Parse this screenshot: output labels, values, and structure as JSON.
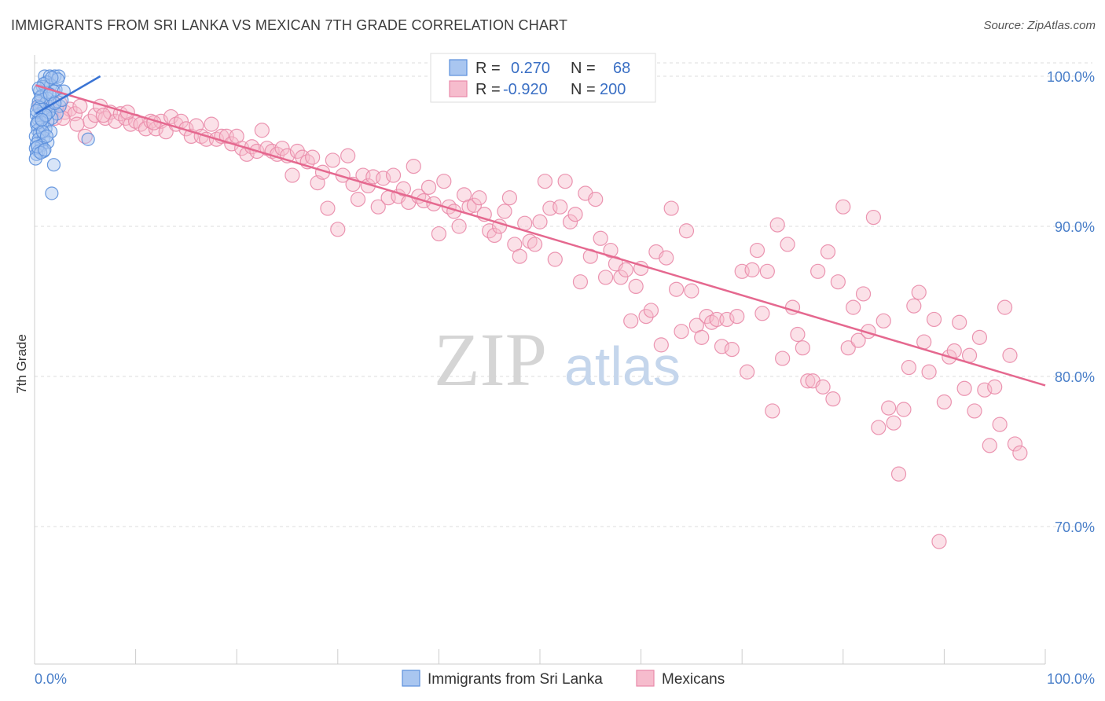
{
  "title": "IMMIGRANTS FROM SRI LANKA VS MEXICAN 7TH GRADE CORRELATION CHART",
  "source": "Source: ZipAtlas.com",
  "watermark": {
    "zip": "ZIP",
    "atlas": "atlas"
  },
  "colors": {
    "blue_fill": "#a9c6f0",
    "blue_stroke": "#5b8fdc",
    "blue_line": "#3a74d4",
    "pink_fill": "#f6bccd",
    "pink_stroke": "#e98aa9",
    "pink_line": "#e5688f",
    "grid": "#dddddd",
    "tick_text": "#4a7fc9"
  },
  "legend": {
    "r_label": "R =",
    "n_label": "N =",
    "entries": [
      {
        "r": "0.270",
        "n": "68"
      },
      {
        "r": "-0.920",
        "n": "200"
      }
    ]
  },
  "chart_data": {
    "type": "scatter",
    "xlabel": "",
    "ylabel": "7th Grade",
    "xlim": [
      0,
      100
    ],
    "ylim": [
      60,
      100
    ],
    "x_tick_labels": [
      "0.0%",
      "100.0%"
    ],
    "y_ticks": [
      {
        "value": 100,
        "label": "100.0%"
      },
      {
        "value": 90,
        "label": "90.0%"
      },
      {
        "value": 80,
        "label": "80.0%"
      },
      {
        "value": 70,
        "label": "70.0%"
      }
    ],
    "grid": true,
    "legend_placement": "top-center",
    "series": [
      {
        "name": "Immigrants from Sri Lanka",
        "trend": {
          "x": [
            0.1,
            6.5
          ],
          "y": [
            97.5,
            100.0
          ]
        },
        "points": [
          [
            1.0,
            100.0
          ],
          [
            1.5,
            100.0
          ],
          [
            2.0,
            100.0
          ],
          [
            2.4,
            100.0
          ],
          [
            1.2,
            99.6
          ],
          [
            0.8,
            99.3
          ],
          [
            1.6,
            99.4
          ],
          [
            2.1,
            99.1
          ],
          [
            0.5,
            99.0
          ],
          [
            1.9,
            99.0
          ],
          [
            2.9,
            99.0
          ],
          [
            0.7,
            98.7
          ],
          [
            1.3,
            98.5
          ],
          [
            0.4,
            98.3
          ],
          [
            1.1,
            98.2
          ],
          [
            1.8,
            98.1
          ],
          [
            2.5,
            98.0
          ],
          [
            0.3,
            98.0
          ],
          [
            0.9,
            97.8
          ],
          [
            1.5,
            97.7
          ],
          [
            2.2,
            97.5
          ],
          [
            0.6,
            97.5
          ],
          [
            0.2,
            97.4
          ],
          [
            1.0,
            97.3
          ],
          [
            1.7,
            97.2
          ],
          [
            0.4,
            97.1
          ],
          [
            1.3,
            97.0
          ],
          [
            0.8,
            96.9
          ],
          [
            0.2,
            96.8
          ],
          [
            0.6,
            96.6
          ],
          [
            1.1,
            96.5
          ],
          [
            0.3,
            96.4
          ],
          [
            1.6,
            96.3
          ],
          [
            0.5,
            96.2
          ],
          [
            0.1,
            96.0
          ],
          [
            0.9,
            95.9
          ],
          [
            0.4,
            95.8
          ],
          [
            1.3,
            95.6
          ],
          [
            0.2,
            95.5
          ],
          [
            0.7,
            95.4
          ],
          [
            0.1,
            95.2
          ],
          [
            0.4,
            95.0
          ],
          [
            0.9,
            95.0
          ],
          [
            0.2,
            94.8
          ],
          [
            5.3,
            95.8
          ],
          [
            1.9,
            94.1
          ],
          [
            1.7,
            92.2
          ],
          [
            0.1,
            94.5
          ],
          [
            1.2,
            98.9
          ],
          [
            2.7,
            98.4
          ],
          [
            0.5,
            97.9
          ],
          [
            1.4,
            97.6
          ],
          [
            0.9,
            99.5
          ],
          [
            2.3,
            99.8
          ],
          [
            1.7,
            99.9
          ],
          [
            0.3,
            96.9
          ],
          [
            0.6,
            98.6
          ],
          [
            1.1,
            97.4
          ],
          [
            0.2,
            97.7
          ],
          [
            0.8,
            96.3
          ],
          [
            1.5,
            98.8
          ],
          [
            0.4,
            99.2
          ],
          [
            2.0,
            98.2
          ],
          [
            0.7,
            97.1
          ],
          [
            1.2,
            96.0
          ],
          [
            0.3,
            95.3
          ],
          [
            0.6,
            94.9
          ],
          [
            1.0,
            95.1
          ]
        ]
      },
      {
        "name": "Mexicans",
        "trend": {
          "x": [
            0.1,
            100.0
          ],
          "y": [
            99.4,
            79.4
          ]
        },
        "points": [
          [
            0.5,
            98.0
          ],
          [
            1.0,
            97.5
          ],
          [
            1.5,
            97.8
          ],
          [
            2.0,
            97.2
          ],
          [
            2.5,
            98.2
          ],
          [
            3.0,
            97.6
          ],
          [
            3.5,
            97.8
          ],
          [
            4.0,
            97.5
          ],
          [
            4.5,
            98.0
          ],
          [
            5.0,
            96.0
          ],
          [
            5.5,
            97.0
          ],
          [
            6.0,
            97.4
          ],
          [
            6.5,
            98.0
          ],
          [
            7.0,
            97.2
          ],
          [
            7.5,
            97.6
          ],
          [
            8.0,
            97.0
          ],
          [
            8.5,
            97.5
          ],
          [
            9.0,
            97.2
          ],
          [
            9.5,
            96.8
          ],
          [
            10.0,
            97.0
          ],
          [
            10.5,
            96.8
          ],
          [
            11.0,
            96.5
          ],
          [
            11.5,
            97.0
          ],
          [
            12.0,
            96.5
          ],
          [
            12.5,
            97.0
          ],
          [
            13.0,
            96.3
          ],
          [
            13.5,
            97.3
          ],
          [
            14.0,
            96.8
          ],
          [
            14.5,
            97.0
          ],
          [
            15.0,
            96.5
          ],
          [
            15.5,
            96.0
          ],
          [
            16.0,
            96.7
          ],
          [
            16.5,
            96.0
          ],
          [
            17.0,
            95.8
          ],
          [
            17.5,
            96.8
          ],
          [
            18.0,
            95.8
          ],
          [
            18.5,
            96.0
          ],
          [
            19.0,
            96.0
          ],
          [
            19.5,
            95.5
          ],
          [
            20.0,
            96.0
          ],
          [
            20.5,
            95.2
          ],
          [
            21.0,
            94.8
          ],
          [
            21.5,
            95.3
          ],
          [
            22.0,
            95.0
          ],
          [
            22.5,
            96.4
          ],
          [
            23.0,
            95.2
          ],
          [
            23.5,
            95.0
          ],
          [
            24.0,
            94.8
          ],
          [
            24.5,
            95.2
          ],
          [
            25.0,
            94.7
          ],
          [
            25.5,
            93.4
          ],
          [
            26.0,
            95.0
          ],
          [
            26.5,
            94.6
          ],
          [
            27.0,
            94.3
          ],
          [
            27.5,
            94.6
          ],
          [
            28.0,
            92.9
          ],
          [
            28.5,
            93.6
          ],
          [
            29.0,
            91.2
          ],
          [
            29.5,
            94.4
          ],
          [
            30.0,
            89.8
          ],
          [
            30.5,
            93.4
          ],
          [
            31.0,
            94.7
          ],
          [
            31.5,
            92.8
          ],
          [
            32.0,
            91.8
          ],
          [
            32.5,
            93.4
          ],
          [
            33.0,
            92.7
          ],
          [
            33.5,
            93.3
          ],
          [
            34.0,
            91.3
          ],
          [
            34.5,
            93.2
          ],
          [
            35.0,
            91.9
          ],
          [
            35.5,
            93.4
          ],
          [
            36.0,
            92.0
          ],
          [
            36.5,
            92.5
          ],
          [
            37.0,
            91.6
          ],
          [
            37.5,
            94.0
          ],
          [
            38.0,
            92.0
          ],
          [
            38.5,
            91.7
          ],
          [
            39.0,
            92.6
          ],
          [
            39.5,
            91.5
          ],
          [
            40.0,
            89.5
          ],
          [
            40.5,
            93.0
          ],
          [
            41.0,
            91.3
          ],
          [
            41.5,
            91.0
          ],
          [
            42.0,
            90.0
          ],
          [
            42.5,
            92.1
          ],
          [
            43.0,
            91.3
          ],
          [
            43.5,
            91.4
          ],
          [
            44.0,
            91.9
          ],
          [
            44.5,
            90.8
          ],
          [
            45.0,
            89.7
          ],
          [
            45.5,
            89.4
          ],
          [
            46.0,
            90.0
          ],
          [
            46.5,
            91.0
          ],
          [
            47.0,
            91.9
          ],
          [
            47.5,
            88.8
          ],
          [
            48.0,
            88.0
          ],
          [
            48.5,
            90.2
          ],
          [
            49.0,
            89.0
          ],
          [
            49.5,
            88.8
          ],
          [
            50.0,
            90.3
          ],
          [
            50.5,
            93.0
          ],
          [
            51.0,
            91.2
          ],
          [
            51.5,
            87.8
          ],
          [
            52.0,
            91.3
          ],
          [
            52.5,
            93.0
          ],
          [
            53.0,
            90.3
          ],
          [
            53.5,
            90.8
          ],
          [
            54.0,
            86.3
          ],
          [
            54.5,
            92.2
          ],
          [
            55.0,
            88.0
          ],
          [
            55.5,
            91.8
          ],
          [
            56.0,
            89.2
          ],
          [
            56.5,
            86.6
          ],
          [
            57.0,
            88.4
          ],
          [
            57.5,
            87.5
          ],
          [
            58.0,
            86.6
          ],
          [
            58.5,
            87.1
          ],
          [
            59.0,
            83.7
          ],
          [
            59.5,
            86.0
          ],
          [
            60.0,
            87.2
          ],
          [
            60.5,
            84.0
          ],
          [
            61.0,
            84.4
          ],
          [
            61.5,
            88.3
          ],
          [
            62.0,
            82.1
          ],
          [
            62.5,
            87.9
          ],
          [
            63.0,
            91.2
          ],
          [
            63.5,
            85.8
          ],
          [
            64.0,
            83.0
          ],
          [
            64.5,
            89.7
          ],
          [
            65.0,
            85.7
          ],
          [
            65.5,
            83.4
          ],
          [
            66.0,
            82.6
          ],
          [
            66.5,
            84.0
          ],
          [
            67.0,
            83.6
          ],
          [
            67.5,
            83.8
          ],
          [
            68.0,
            82.0
          ],
          [
            68.5,
            83.8
          ],
          [
            69.0,
            81.8
          ],
          [
            69.5,
            84.0
          ],
          [
            70.0,
            87.0
          ],
          [
            70.5,
            80.3
          ],
          [
            71.0,
            87.1
          ],
          [
            71.5,
            88.4
          ],
          [
            72.0,
            84.2
          ],
          [
            72.5,
            87.0
          ],
          [
            73.0,
            77.7
          ],
          [
            73.5,
            90.1
          ],
          [
            74.0,
            81.2
          ],
          [
            74.5,
            88.8
          ],
          [
            75.0,
            84.6
          ],
          [
            75.5,
            82.8
          ],
          [
            76.0,
            81.9
          ],
          [
            76.5,
            79.7
          ],
          [
            77.0,
            79.7
          ],
          [
            77.5,
            87.0
          ],
          [
            78.0,
            79.3
          ],
          [
            78.5,
            88.3
          ],
          [
            79.0,
            78.5
          ],
          [
            79.5,
            86.3
          ],
          [
            80.0,
            91.3
          ],
          [
            80.5,
            81.9
          ],
          [
            81.0,
            84.6
          ],
          [
            81.5,
            82.4
          ],
          [
            82.0,
            85.5
          ],
          [
            82.5,
            83.0
          ],
          [
            83.0,
            90.6
          ],
          [
            83.5,
            76.6
          ],
          [
            84.0,
            83.7
          ],
          [
            84.5,
            77.9
          ],
          [
            85.0,
            76.9
          ],
          [
            85.5,
            73.5
          ],
          [
            86.0,
            77.8
          ],
          [
            86.5,
            80.6
          ],
          [
            87.0,
            84.7
          ],
          [
            87.5,
            85.6
          ],
          [
            88.0,
            82.3
          ],
          [
            88.5,
            80.3
          ],
          [
            89.0,
            83.8
          ],
          [
            89.5,
            69.0
          ],
          [
            90.0,
            78.3
          ],
          [
            90.5,
            81.3
          ],
          [
            91.0,
            81.7
          ],
          [
            91.5,
            83.6
          ],
          [
            92.0,
            79.2
          ],
          [
            92.5,
            81.4
          ],
          [
            93.0,
            77.7
          ],
          [
            93.5,
            82.6
          ],
          [
            94.0,
            79.1
          ],
          [
            94.5,
            75.4
          ],
          [
            95.0,
            79.3
          ],
          [
            95.5,
            76.8
          ],
          [
            96.0,
            84.6
          ],
          [
            96.5,
            81.4
          ],
          [
            97.0,
            75.5
          ],
          [
            97.5,
            74.9
          ],
          [
            2.8,
            97.2
          ],
          [
            4.2,
            96.8
          ],
          [
            6.8,
            97.4
          ],
          [
            9.2,
            97.6
          ],
          [
            11.8,
            96.9
          ]
        ]
      }
    ]
  },
  "bottom_legend": [
    {
      "label": "Immigrants from Sri Lanka"
    },
    {
      "label": "Mexicans"
    }
  ]
}
